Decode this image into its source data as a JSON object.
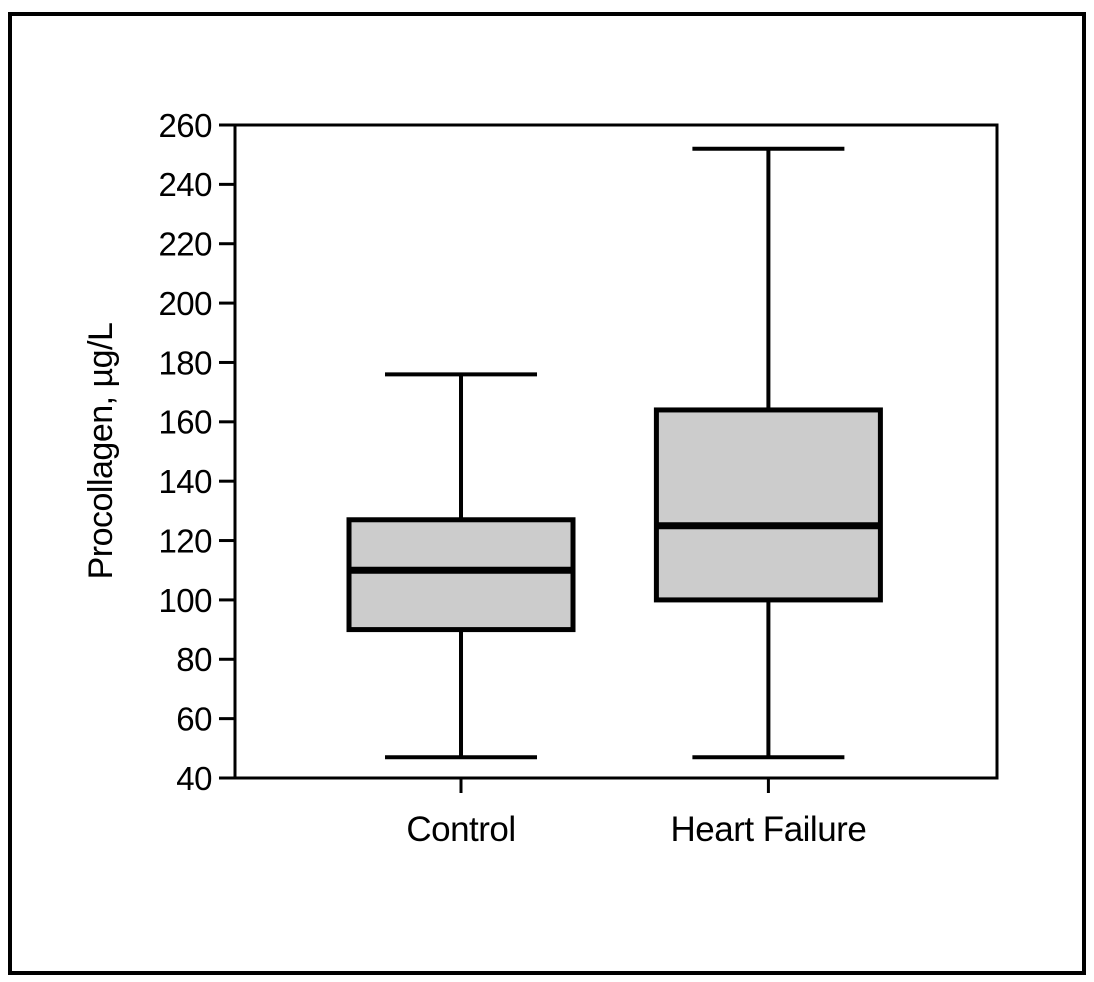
{
  "figure": {
    "background": "#ffffff",
    "border_color": "#000000",
    "line_color": "#000000"
  },
  "chart_data": {
    "type": "boxplot",
    "title": "",
    "xlabel": "",
    "ylabel": "Procollagen, µg/L",
    "ylim": [
      40,
      260
    ],
    "ytick_step": 20,
    "yticks": [
      260,
      240,
      220,
      200,
      180,
      160,
      140,
      120,
      100,
      80,
      60,
      40
    ],
    "categories": [
      "Control",
      "Heart Failure"
    ],
    "series": [
      {
        "name": "Control",
        "min": 47,
        "q1": 90,
        "median": 110,
        "q3": 127,
        "max": 176
      },
      {
        "name": "Heart Failure",
        "min": 47,
        "q1": 100,
        "median": 125,
        "q3": 164,
        "max": 252
      }
    ],
    "box_fill": "#cccccc",
    "line_color": "#000000",
    "grid": false,
    "legend": null
  }
}
